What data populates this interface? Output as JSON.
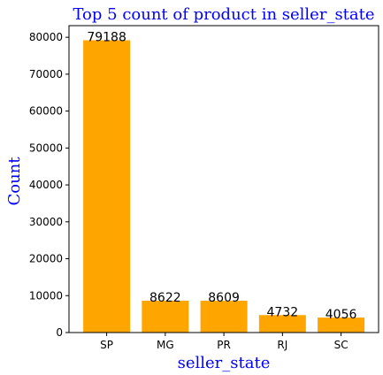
{
  "chart_data": {
    "type": "bar",
    "title": "Top 5 count of product in seller_state",
    "xlabel": "seller_state",
    "ylabel": "Count",
    "categories": [
      "SP",
      "MG",
      "PR",
      "RJ",
      "SC"
    ],
    "values": [
      79188,
      8622,
      8609,
      4732,
      4056
    ],
    "data_labels": [
      "79188",
      "8622",
      "8609",
      "4732",
      "4056"
    ],
    "ylim": [
      0,
      83150
    ],
    "yticks": [
      0,
      10000,
      20000,
      30000,
      40000,
      50000,
      60000,
      70000,
      80000
    ],
    "ytick_labels": [
      "0",
      "10000",
      "20000",
      "30000",
      "40000",
      "50000",
      "60000",
      "70000",
      "80000"
    ],
    "grid": false,
    "bar_color": "#ffa500",
    "title_color": "#0000ff",
    "label_color": "#0000ff"
  }
}
